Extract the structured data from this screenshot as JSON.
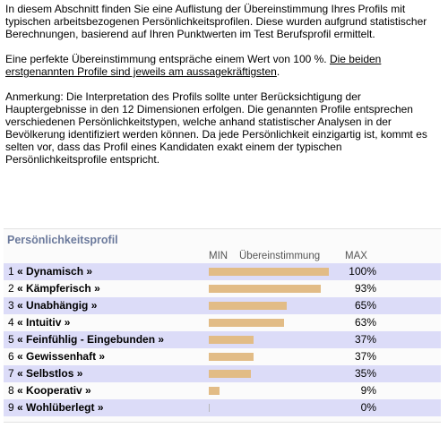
{
  "intro": {
    "para1": "In diesem Abschnitt finden Sie eine Auflistung der Übereinstimmung Ihres Profils mit typischen arbeitsbezogenen Persönlichkeitsprofilen. Diese wurden aufgrund statistischer Berechnungen, basierend auf Ihren Punktwerten im Test Berufsprofil ermittelt.",
    "para2_plain": "Eine perfekte Übereinstimmung entspräche einem Wert von 100 %. ",
    "para2_underlined": "Die beiden erstgenannten Profile sind jeweils am aussagekräftigsten",
    "para2_end": ".",
    "para3": "Anmerkung: Die Interpretation des Profils sollte unter Berücksichtigung der Hauptergebnisse in den 12 Dimensionen erfolgen. Die genannten Profile entsprechen verschiedenen Persönlichkeitstypen, welche anhand statistischer Analysen in der Bevölkerung identifiziert werden können. Da jede Persönlichkeit einzigartig ist, kommt es selten vor, dass das Profil eines Kandidaten exakt einem der typischen Persönlichkeitsprofile entspricht."
  },
  "profile": {
    "title": "Persönlichkeitsprofil",
    "col_min": "MIN",
    "col_match": "Übereinstimmung",
    "col_max": "MAX",
    "colors": {
      "bar": "#e2bc86",
      "alt_row": "#dcdcf8",
      "title": "#6b7a9c"
    },
    "rows": [
      {
        "num": "1",
        "name": "« Dynamisch »",
        "value": 100,
        "pct": "100%"
      },
      {
        "num": "2",
        "name": "« Kämpferisch »",
        "value": 93,
        "pct": "93%"
      },
      {
        "num": "3",
        "name": "« Unabhängig »",
        "value": 65,
        "pct": "65%"
      },
      {
        "num": "4",
        "name": "« Intuitiv »",
        "value": 63,
        "pct": "63%"
      },
      {
        "num": "5",
        "name": "« Feinfühlig - Eingebunden »",
        "value": 37,
        "pct": "37%"
      },
      {
        "num": "6",
        "name": "« Gewissenhaft »",
        "value": 37,
        "pct": "37%"
      },
      {
        "num": "7",
        "name": "« Selbstlos »",
        "value": 35,
        "pct": "35%"
      },
      {
        "num": "8",
        "name": "« Kooperativ »",
        "value": 9,
        "pct": "9%"
      },
      {
        "num": "9",
        "name": "« Wohlüberlegt »",
        "value": 0,
        "pct": "0%"
      }
    ]
  }
}
